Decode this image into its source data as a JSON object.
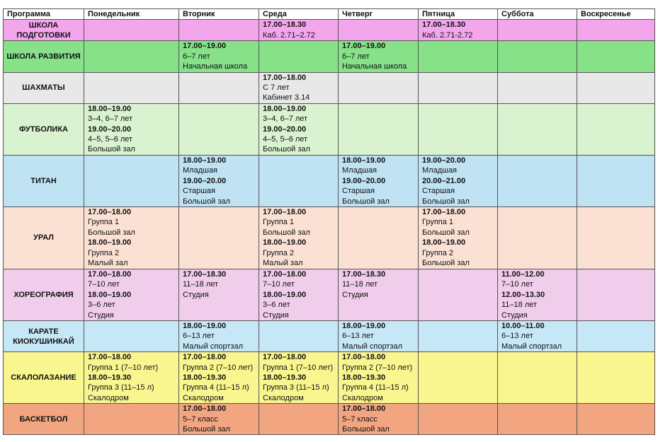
{
  "header": [
    "Программа",
    "Понедельник",
    "Вторник",
    "Среда",
    "Четверг",
    "Пятница",
    "Суббота",
    "Воскресенье"
  ],
  "rows": [
    {
      "program": "ШКОЛА ПОДГОТОВКИ",
      "color": "#f4a6ec",
      "cells": [
        [],
        [],
        [
          {
            "t": "17.00–18.30",
            "b": true
          },
          {
            "t": "Каб. 2.71–2.72"
          }
        ],
        [],
        [
          {
            "t": "17.00–18.30",
            "b": true
          },
          {
            "t": "Каб. 2.71-2.72"
          }
        ],
        [],
        []
      ]
    },
    {
      "program": "ШКОЛА РАЗВИТИЯ",
      "color": "#86e189",
      "cells": [
        [],
        [
          {
            "t": "17.00–19.00",
            "b": true
          },
          {
            "t": "6–7 лет"
          },
          {
            "t": "Начальная школа"
          }
        ],
        [],
        [
          {
            "t": "17.00–19.00",
            "b": true
          },
          {
            "t": "6–7 лет"
          },
          {
            "t": "Начальная школа"
          }
        ],
        [],
        [],
        []
      ]
    },
    {
      "program": "ШАХМАТЫ",
      "color": "#e8e8e8",
      "cells": [
        [],
        [],
        [
          {
            "t": "17.00–18.00",
            "b": true
          },
          {
            "t": "С 7 лет"
          },
          {
            "t": "Кабинет 3.14"
          }
        ],
        [],
        [],
        [],
        []
      ]
    },
    {
      "program": "ФУТБОЛИКА",
      "color": "#d9f2d0",
      "cells": [
        [
          {
            "t": "18.00–19.00",
            "b": true
          },
          {
            "t": "3–4, 6–7 лет"
          },
          {
            "t": "19.00–20.00",
            "b": true
          },
          {
            "t": "4–5, 5–6 лет"
          },
          {
            "t": "Большой зал"
          }
        ],
        [],
        [
          {
            "t": "18.00–19.00",
            "b": true
          },
          {
            "t": "3–4, 6–7 лет"
          },
          {
            "t": "19.00–20.00",
            "b": true
          },
          {
            "t": "4–5, 5–6 лет"
          },
          {
            "t": "Большой зал"
          }
        ],
        [],
        [],
        [],
        []
      ]
    },
    {
      "program": "ТИТАН",
      "color": "#c0e3f3",
      "cells": [
        [],
        [
          {
            "t": "18.00–19.00",
            "b": true
          },
          {
            "t": "Младшая"
          },
          {
            "t": "19.00–20.00",
            "b": true
          },
          {
            "t": "Старшая"
          },
          {
            "t": "Большой зал"
          }
        ],
        [],
        [
          {
            "t": "18.00–19.00",
            "b": true
          },
          {
            "t": "Младшая"
          },
          {
            "t": "19.00–20.00",
            "b": true
          },
          {
            "t": "Старшая"
          },
          {
            "t": "Большой зал"
          }
        ],
        [
          {
            "t": "19.00–20.00",
            "b": true
          },
          {
            "t": "Младшая"
          },
          {
            "t": "20.00–21.00",
            "b": true
          },
          {
            "t": "Старшая"
          },
          {
            "t": "Большой зал"
          }
        ],
        [],
        []
      ]
    },
    {
      "program": "УРАЛ",
      "color": "#fae1d4",
      "cells": [
        [
          {
            "t": "17.00–18.00",
            "b": true
          },
          {
            "t": "Группа 1"
          },
          {
            "t": "Большой зал"
          },
          {
            "t": "18.00–19.00",
            "b": true
          },
          {
            "t": "Группа 2"
          },
          {
            "t": "Малый зал"
          }
        ],
        [],
        [
          {
            "t": "17.00–18.00",
            "b": true
          },
          {
            "t": "Группа 1"
          },
          {
            "t": "Большой зал"
          },
          {
            "t": "18.00–19.00",
            "b": true
          },
          {
            "t": "Группа 2"
          },
          {
            "t": "Малый зал"
          }
        ],
        [],
        [
          {
            "t": "17.00–18.00",
            "b": true
          },
          {
            "t": "Группа 1"
          },
          {
            "t": "Большой зал"
          },
          {
            "t": "18.00–19.00",
            "b": true
          },
          {
            "t": "Группа 2"
          },
          {
            "t": "Большой зал"
          }
        ],
        [],
        []
      ]
    },
    {
      "program": "ХОРЕОГРАФИЯ",
      "color": "#f0cdea",
      "cells": [
        [
          {
            "t": "17.00–18.00",
            "b": true
          },
          {
            "t": "7–10 лет"
          },
          {
            "t": "18.00–19.00",
            "b": true
          },
          {
            "t": "3–6 лет"
          },
          {
            "t": "Студия"
          }
        ],
        [
          {
            "t": "17.00–18.30",
            "b": true
          },
          {
            "t": "11–18 лет"
          },
          {
            "t": "Студия"
          }
        ],
        [
          {
            "t": "17.00–18.00",
            "b": true
          },
          {
            "t": "7–10 лет"
          },
          {
            "t": "18.00–19.00",
            "b": true
          },
          {
            "t": "3–6 лет"
          },
          {
            "t": "Студия"
          }
        ],
        [
          {
            "t": " 17.00–18.30",
            "b": true
          },
          {
            "t": "11–18 лет"
          },
          {
            "t": "Студия"
          }
        ],
        [],
        [
          {
            "t": "11.00–12.00",
            "b": true
          },
          {
            "t": "7–10 лет"
          },
          {
            "t": "12.00–13.30",
            "b": true
          },
          {
            "t": "11–18 лет"
          },
          {
            "t": "Студия"
          }
        ],
        []
      ]
    },
    {
      "program": "КАРАТЕ КИОКУШИНКАЙ",
      "color": "#c6e8f6",
      "cells": [
        [],
        [
          {
            "t": "18.00–19.00",
            "b": true
          },
          {
            "t": "6–13 лет"
          },
          {
            "t": "Малый спортзал"
          }
        ],
        [],
        [
          {
            "t": "18.00–19.00",
            "b": true
          },
          {
            "t": "6–13 лет"
          },
          {
            "t": "Малый спортзал"
          }
        ],
        [],
        [
          {
            "t": "10.00–11.00",
            "b": true
          },
          {
            "t": "6–13 лет"
          },
          {
            "t": "Малый спортзал"
          }
        ],
        []
      ]
    },
    {
      "program": "СКАЛОЛАЗАНИЕ",
      "color": "#f9f690",
      "cells": [
        [
          {
            "t": "17.00–18.00",
            "b": true
          },
          {
            "t": "Группа 1 (7–10 лет)"
          },
          {
            "t": "18.00–19.30",
            "b": true
          },
          {
            "t": "Группа 3 (11–15 л)"
          },
          {
            "t": "Скалодром"
          }
        ],
        [
          {
            "t": "17.00–18.00",
            "b": true
          },
          {
            "t": "Группа 2 (7–10 лет)"
          },
          {
            "t": "18.00–19.30",
            "b": true
          },
          {
            "t": "Группа 4 (11–15 л)"
          },
          {
            "t": "Скалодром"
          }
        ],
        [
          {
            "t": "17.00–18.00",
            "b": true
          },
          {
            "t": "Группа 1 (7–10 лет)"
          },
          {
            "t": "18.00–19.30",
            "b": true
          },
          {
            "t": "Группа 3 (11–15 л)"
          },
          {
            "t": "Скалодром"
          }
        ],
        [
          {
            "t": "17.00–18.00",
            "b": true
          },
          {
            "t": "Группа 2 (7–10 лет)"
          },
          {
            "t": "18.00–19.30",
            "b": true
          },
          {
            "t": "Группа 4 (11–15 л)"
          },
          {
            "t": "Скалодром"
          }
        ],
        [],
        [],
        []
      ]
    },
    {
      "program": "БАСКЕТБОЛ",
      "color": "#f1a681",
      "cells": [
        [],
        [
          {
            "t": "17.00–18.00",
            "b": true
          },
          {
            "t": "5–7 класс"
          },
          {
            "t": "Большой зал"
          }
        ],
        [],
        [
          {
            "t": "17.00–18.00",
            "b": true
          },
          {
            "t": "5–7 класс"
          },
          {
            "t": "Большой зал"
          }
        ],
        [],
        [],
        []
      ]
    }
  ]
}
